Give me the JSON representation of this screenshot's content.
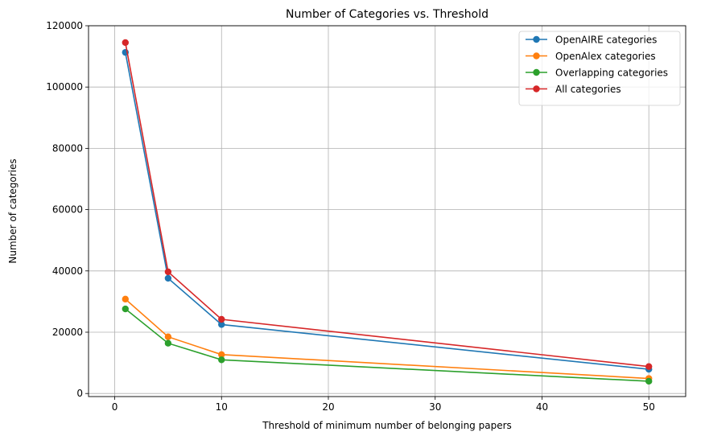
{
  "chart_data": {
    "type": "line",
    "title": "Number of Categories vs. Threshold",
    "xlabel": "Threshold of minimum number of belonging papers",
    "ylabel": "Number of categories",
    "x": [
      1,
      5,
      10,
      50
    ],
    "xlim": [
      -2.45,
      53.45
    ],
    "ylim": [
      -1000,
      120000
    ],
    "xticks": [
      0,
      10,
      20,
      30,
      40,
      50
    ],
    "yticks": [
      0,
      20000,
      40000,
      60000,
      80000,
      100000,
      120000
    ],
    "grid": true,
    "legend_position": "top-right",
    "series": [
      {
        "name": "OpenAIRE categories",
        "color": "#1f77b4",
        "values": [
          111300,
          37600,
          22500,
          7900
        ]
      },
      {
        "name": "OpenAlex categories",
        "color": "#ff7f0e",
        "values": [
          30800,
          18500,
          12700,
          4900
        ]
      },
      {
        "name": "Overlapping categories",
        "color": "#2ca02c",
        "values": [
          27600,
          16400,
          11000,
          4000
        ]
      },
      {
        "name": "All categories",
        "color": "#d62728",
        "values": [
          114500,
          39700,
          24200,
          8800
        ]
      }
    ]
  }
}
